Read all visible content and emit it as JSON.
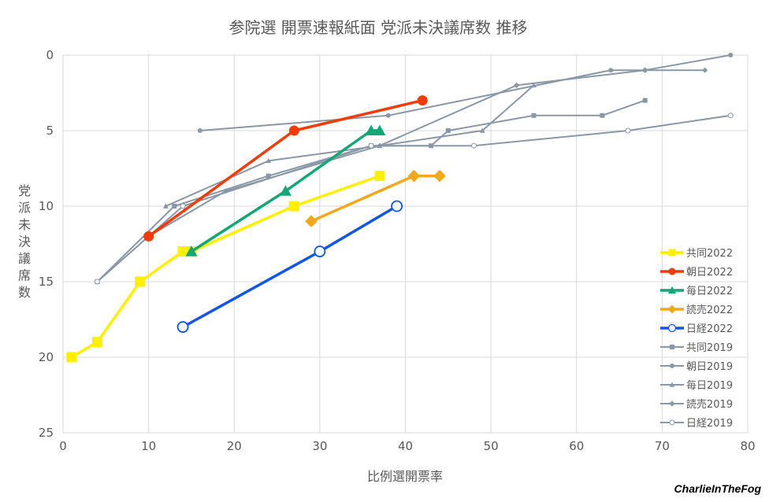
{
  "chart_data": {
    "type": "line",
    "title": "参院選 開票速報紙面 党派未決議席数 推移",
    "xlabel": "比例選開票率",
    "ylabel": "党派未決議席数",
    "xlim": [
      0,
      80
    ],
    "ylim": [
      0,
      25
    ],
    "y_reversed": true,
    "x_ticks": [
      "0",
      "10",
      "20",
      "30",
      "40",
      "50",
      "60",
      "70",
      "80"
    ],
    "y_ticks": [
      "0",
      "5",
      "10",
      "15",
      "20",
      "25"
    ],
    "grid": true,
    "legend_position": "right",
    "series": [
      {
        "name": "共同2022",
        "color": "#FFEF00",
        "marker": "square",
        "size": "large",
        "x": [
          1,
          4,
          9,
          14,
          15,
          27,
          37
        ],
        "y": [
          20,
          19,
          15,
          13,
          13,
          10,
          8
        ]
      },
      {
        "name": "朝日2022",
        "color": "#F03C0A",
        "marker": "circle",
        "size": "large",
        "x": [
          10,
          27,
          42
        ],
        "y": [
          12,
          5,
          3
        ]
      },
      {
        "name": "毎日2022",
        "color": "#14A674",
        "marker": "triangle",
        "size": "large",
        "x": [
          15,
          26,
          36,
          37
        ],
        "y": [
          13,
          9,
          5,
          5
        ]
      },
      {
        "name": "読売2022",
        "color": "#F2A81C",
        "marker": "diamond",
        "size": "large",
        "x": [
          29,
          41,
          44
        ],
        "y": [
          11,
          8,
          8
        ]
      },
      {
        "name": "日経2022",
        "color": "#1256E8",
        "marker": "open-circle",
        "size": "large",
        "x": [
          14,
          30,
          39
        ],
        "y": [
          18,
          13,
          10
        ]
      },
      {
        "name": "共同2019",
        "color": "#8A97A6",
        "marker": "square",
        "size": "small",
        "x": [
          4,
          13,
          24,
          36,
          43,
          45,
          55,
          63,
          68
        ],
        "y": [
          15,
          10,
          8,
          6,
          6,
          5,
          4,
          4,
          3
        ]
      },
      {
        "name": "朝日2019",
        "color": "#8A97A6",
        "marker": "circle",
        "size": "small",
        "x": [
          16,
          38,
          64,
          68,
          78
        ],
        "y": [
          5,
          4,
          1,
          1,
          0
        ]
      },
      {
        "name": "毎日2019",
        "color": "#8A97A6",
        "marker": "triangle",
        "size": "small",
        "x": [
          12,
          24,
          37,
          49,
          55
        ],
        "y": [
          10,
          7,
          6,
          5,
          2
        ]
      },
      {
        "name": "読売2019",
        "color": "#8A97A6",
        "marker": "diamond",
        "size": "small",
        "x": [
          10,
          19,
          37,
          53,
          68,
          75
        ],
        "y": [
          12,
          9,
          6,
          2,
          1,
          1
        ]
      },
      {
        "name": "日経2019",
        "color": "#8A97A6",
        "marker": "open-circle",
        "size": "small",
        "x": [
          4,
          14,
          36,
          48,
          66,
          78
        ],
        "y": [
          15,
          10,
          6,
          6,
          5,
          4
        ]
      }
    ]
  },
  "watermark": "CharlieInTheFog"
}
